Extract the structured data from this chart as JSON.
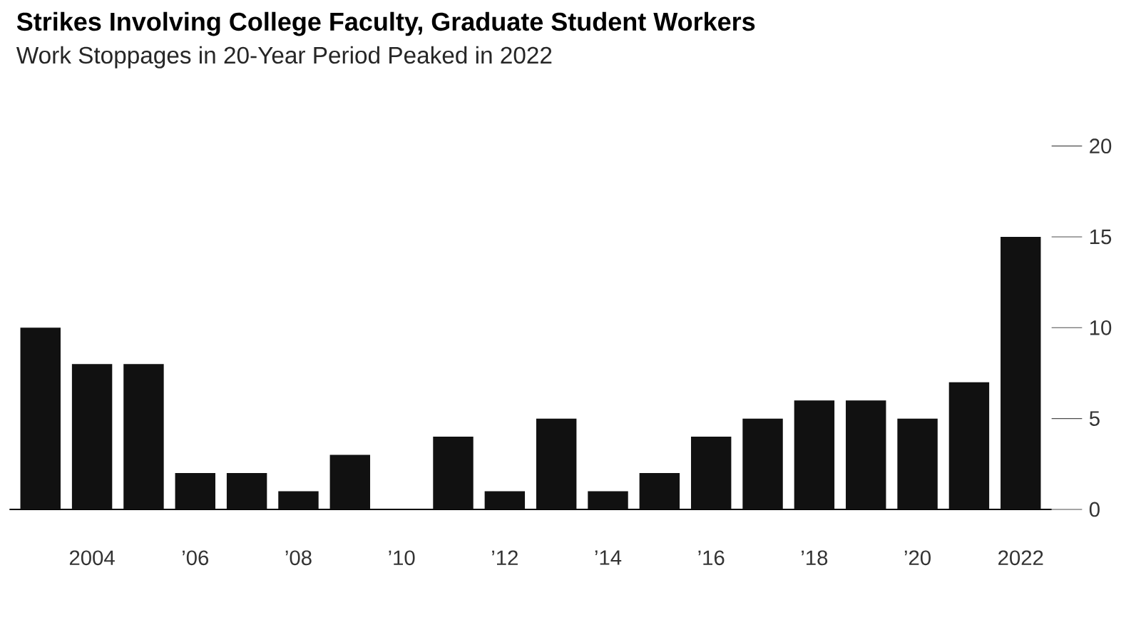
{
  "chart_data": {
    "type": "bar",
    "title": "Strikes Involving College Faculty, Graduate Student Workers",
    "subtitle": "Work Stoppages in 20-Year Period Peaked in 2022",
    "categories": [
      null,
      "2004",
      null,
      "’06",
      null,
      "’08",
      null,
      "’10",
      null,
      "’12",
      null,
      "’14",
      null,
      "’16",
      null,
      "’18",
      null,
      "’20",
      null,
      "2022"
    ],
    "values": [
      10,
      8,
      8,
      2,
      2,
      1,
      3,
      0,
      4,
      1,
      5,
      1,
      2,
      4,
      5,
      6,
      6,
      5,
      7,
      15
    ],
    "color": "#111111",
    "ylim": [
      0,
      20
    ],
    "yticks": [
      0,
      5,
      10,
      15,
      20
    ],
    "grid": false
  }
}
